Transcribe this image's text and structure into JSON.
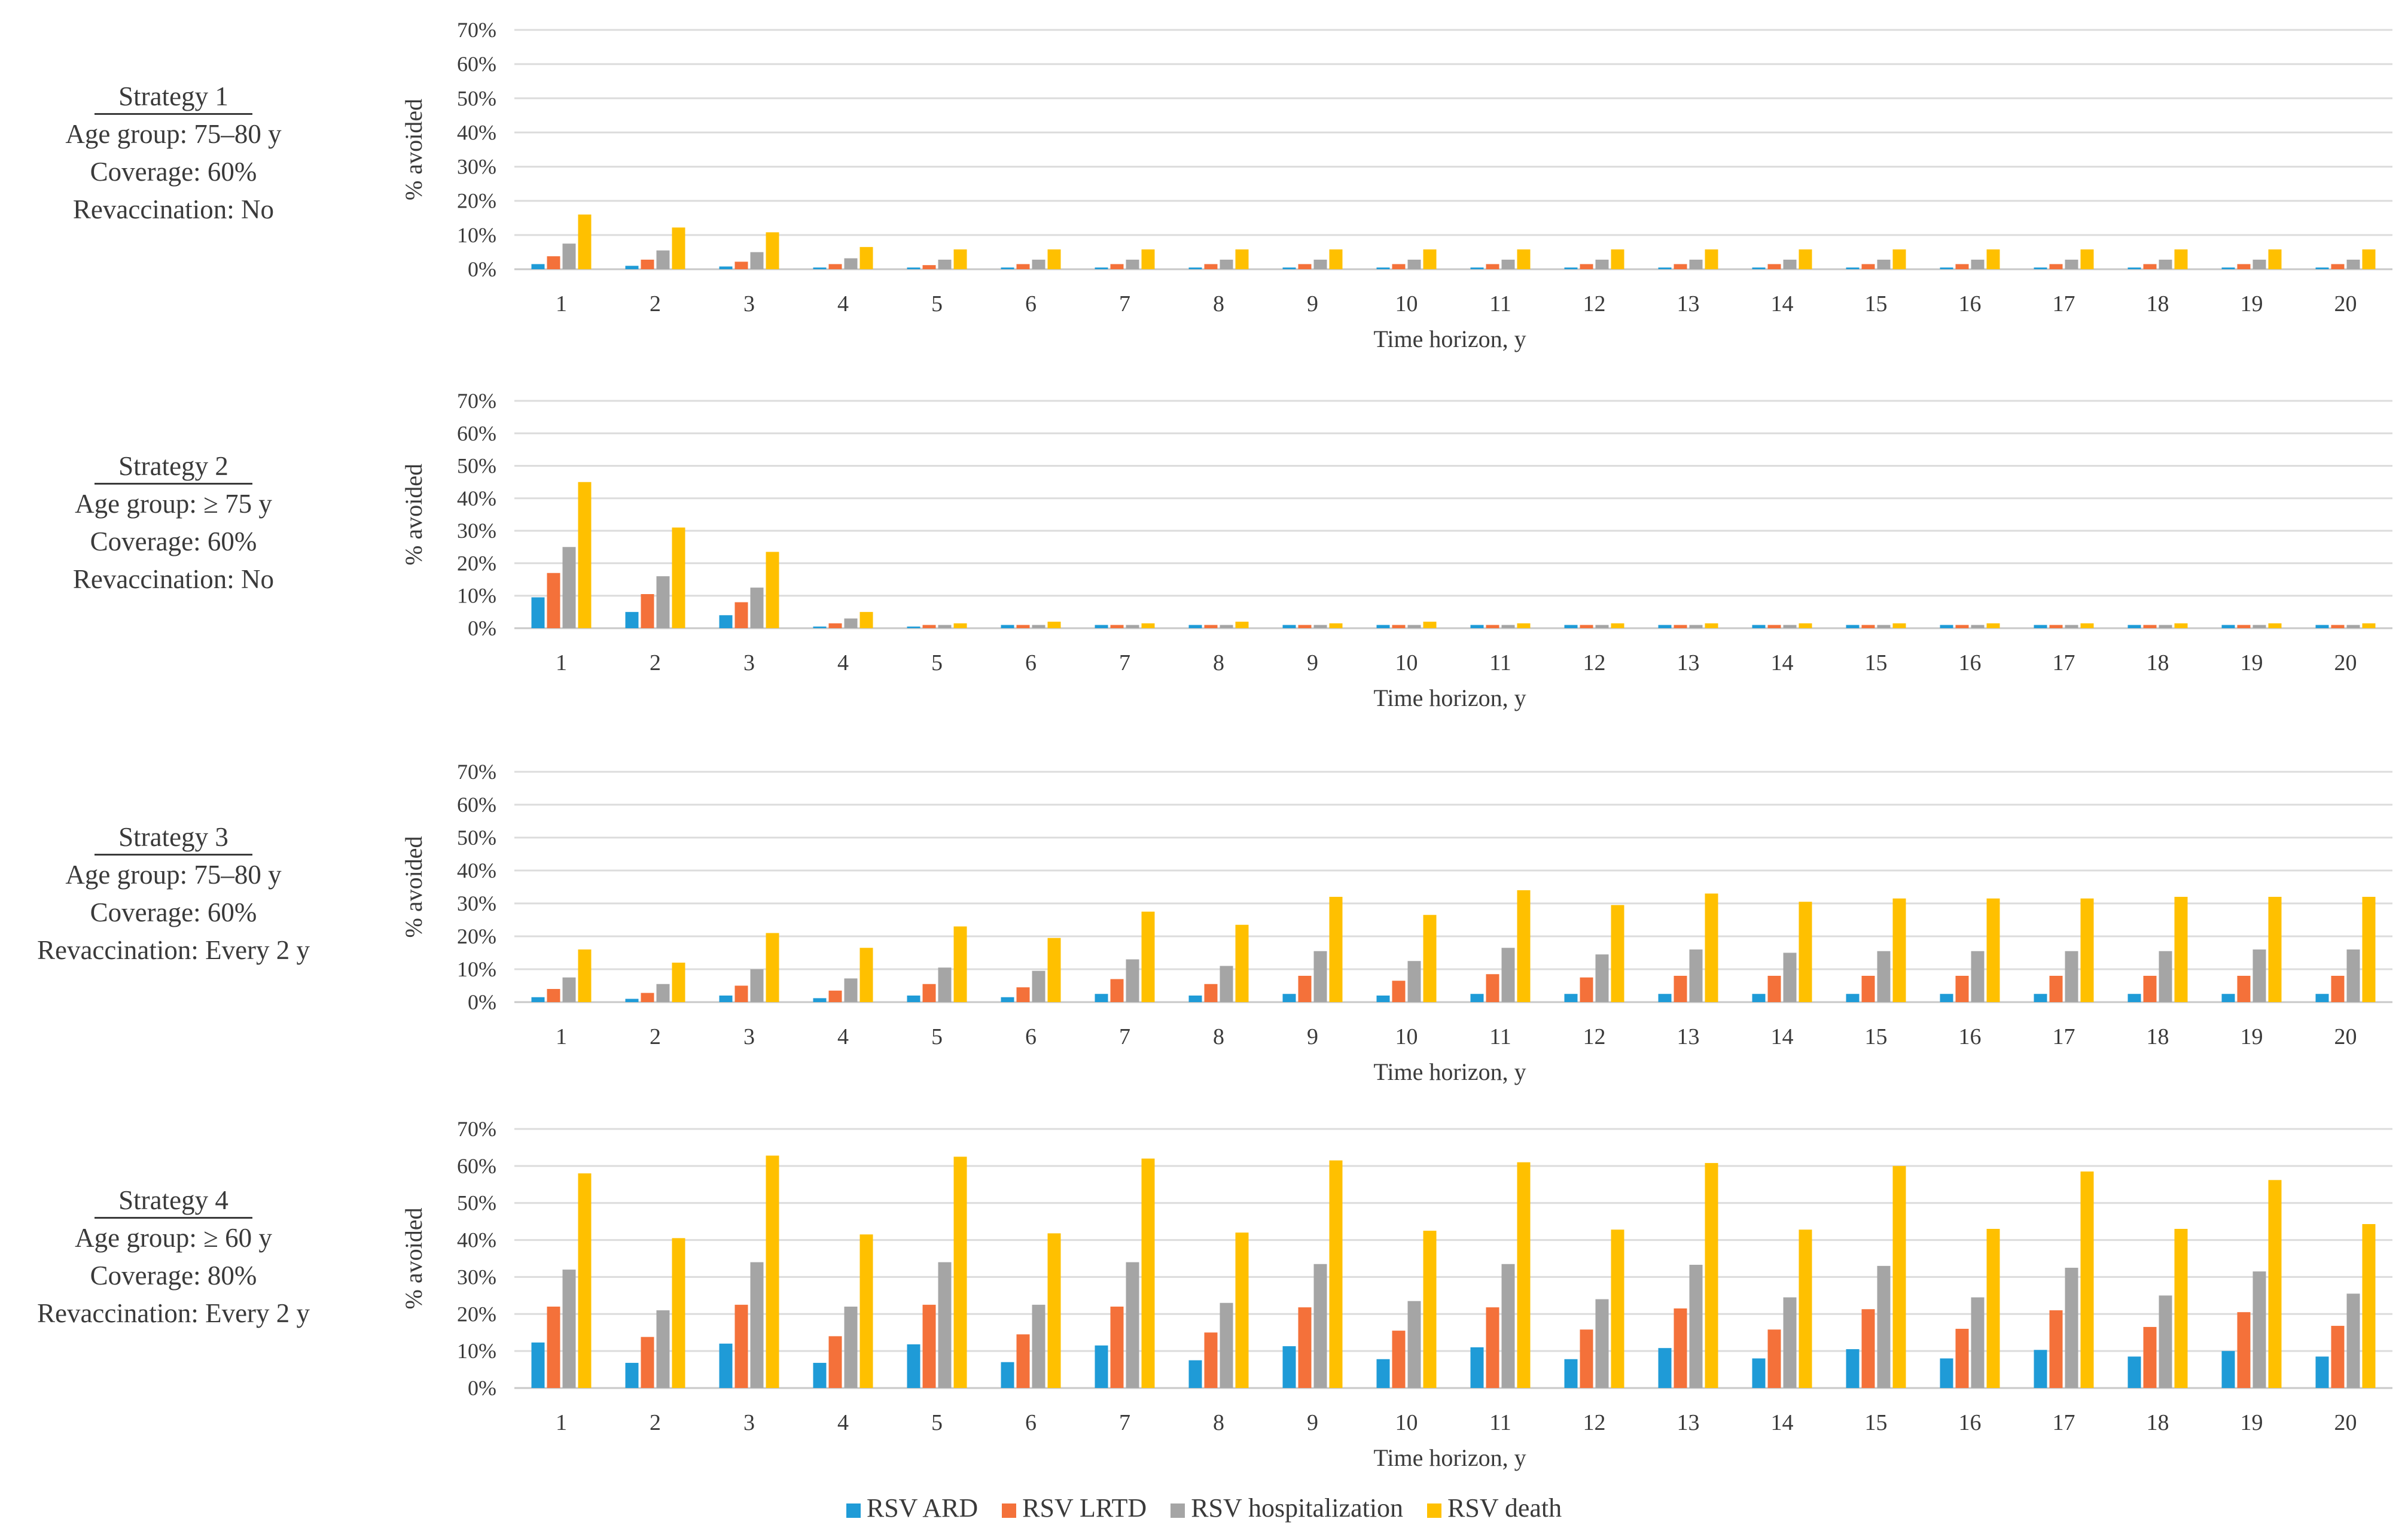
{
  "legend": [
    {
      "name": "RSV ARD",
      "color": "#1f9bd7"
    },
    {
      "name": "RSV LRTD",
      "color": "#f4713a"
    },
    {
      "name": "RSV hospitalization",
      "color": "#a5a5a5"
    },
    {
      "name": "RSV death",
      "color": "#ffc000"
    }
  ],
  "strategies": [
    {
      "title": "Strategy 1",
      "age_group": "Age group: 75–80 y",
      "coverage": "Coverage: 60%",
      "revaccination": "Revaccination: No"
    },
    {
      "title": "Strategy 2",
      "age_group": "Age group: ≥ 75 y",
      "coverage": "Coverage: 60%",
      "revaccination": "Revaccination: No"
    },
    {
      "title": "Strategy 3",
      "age_group": "Age group: 75–80 y",
      "coverage": "Coverage: 60%",
      "revaccination": "Revaccination: Every 2 y"
    },
    {
      "title": "Strategy 4",
      "age_group": "Age group: ≥ 60 y",
      "coverage": "Coverage: 80%",
      "revaccination": "Revaccination: Every 2 y"
    }
  ],
  "chart_data": [
    {
      "type": "bar",
      "xlabel": "Time horizon, y",
      "ylabel": "% avoided",
      "ylim": [
        0,
        70
      ],
      "yticks": [
        "0%",
        "10%",
        "20%",
        "30%",
        "40%",
        "50%",
        "60%",
        "70%"
      ],
      "grid": true,
      "legend_position": "bottom",
      "categories": [
        "1",
        "2",
        "3",
        "4",
        "5",
        "6",
        "7",
        "8",
        "9",
        "10",
        "11",
        "12",
        "13",
        "14",
        "15",
        "16",
        "17",
        "18",
        "19",
        "20"
      ],
      "series": [
        {
          "name": "RSV ARD",
          "values": [
            1.5,
            1.0,
            0.8,
            0.5,
            0.5,
            0.5,
            0.5,
            0.5,
            0.5,
            0.5,
            0.5,
            0.5,
            0.5,
            0.5,
            0.5,
            0.5,
            0.5,
            0.5,
            0.5,
            0.5
          ]
        },
        {
          "name": "RSV LRTD",
          "values": [
            3.8,
            2.8,
            2.2,
            1.5,
            1.2,
            1.5,
            1.5,
            1.5,
            1.5,
            1.5,
            1.5,
            1.5,
            1.5,
            1.5,
            1.5,
            1.5,
            1.5,
            1.5,
            1.5,
            1.5
          ]
        },
        {
          "name": "RSV hospitalization",
          "values": [
            7.5,
            5.5,
            5.0,
            3.2,
            2.8,
            2.8,
            2.8,
            2.8,
            2.8,
            2.8,
            2.8,
            2.8,
            2.8,
            2.8,
            2.8,
            2.8,
            2.8,
            2.8,
            2.8,
            2.8
          ]
        },
        {
          "name": "RSV death",
          "values": [
            16.0,
            12.2,
            10.8,
            6.5,
            5.8,
            5.8,
            5.8,
            5.8,
            5.8,
            5.8,
            5.8,
            5.8,
            5.8,
            5.8,
            5.8,
            5.8,
            5.8,
            5.8,
            5.8,
            5.8
          ]
        }
      ]
    },
    {
      "type": "bar",
      "xlabel": "Time horizon, y",
      "ylabel": "% avoided",
      "ylim": [
        0,
        70
      ],
      "yticks": [
        "0%",
        "10%",
        "20%",
        "30%",
        "40%",
        "50%",
        "60%",
        "70%"
      ],
      "grid": true,
      "legend_position": "bottom",
      "categories": [
        "1",
        "2",
        "3",
        "4",
        "5",
        "6",
        "7",
        "8",
        "9",
        "10",
        "11",
        "12",
        "13",
        "14",
        "15",
        "16",
        "17",
        "18",
        "19",
        "20"
      ],
      "series": [
        {
          "name": "RSV ARD",
          "values": [
            9.5,
            5.0,
            4.0,
            0.5,
            0.5,
            1.0,
            1.0,
            1.0,
            1.0,
            1.0,
            1.0,
            1.0,
            1.0,
            1.0,
            1.0,
            1.0,
            1.0,
            1.0,
            1.0,
            1.0
          ]
        },
        {
          "name": "RSV LRTD",
          "values": [
            17.0,
            10.5,
            8.0,
            1.5,
            1.0,
            1.0,
            1.0,
            1.0,
            1.0,
            1.0,
            1.0,
            1.0,
            1.0,
            1.0,
            1.0,
            1.0,
            1.0,
            1.0,
            1.0,
            1.0
          ]
        },
        {
          "name": "RSV hospitalization",
          "values": [
            25.0,
            16.0,
            12.5,
            3.0,
            1.0,
            1.0,
            1.0,
            1.0,
            1.0,
            1.0,
            1.0,
            1.0,
            1.0,
            1.0,
            1.0,
            1.0,
            1.0,
            1.0,
            1.0,
            1.0
          ]
        },
        {
          "name": "RSV death",
          "values": [
            45.0,
            31.0,
            23.5,
            5.0,
            1.5,
            2.0,
            1.5,
            2.0,
            1.5,
            2.0,
            1.5,
            1.5,
            1.5,
            1.5,
            1.5,
            1.5,
            1.5,
            1.5,
            1.5,
            1.5
          ]
        }
      ]
    },
    {
      "type": "bar",
      "xlabel": "Time horizon, y",
      "ylabel": "% avoided",
      "ylim": [
        0,
        70
      ],
      "yticks": [
        "0%",
        "10%",
        "20%",
        "30%",
        "40%",
        "50%",
        "60%",
        "70%"
      ],
      "grid": true,
      "legend_position": "bottom",
      "categories": [
        "1",
        "2",
        "3",
        "4",
        "5",
        "6",
        "7",
        "8",
        "9",
        "10",
        "11",
        "12",
        "13",
        "14",
        "15",
        "16",
        "17",
        "18",
        "19",
        "20"
      ],
      "series": [
        {
          "name": "RSV ARD",
          "values": [
            1.5,
            1.0,
            2.0,
            1.2,
            2.0,
            1.5,
            2.5,
            2.0,
            2.5,
            2.0,
            2.5,
            2.5,
            2.5,
            2.5,
            2.5,
            2.5,
            2.5,
            2.5,
            2.5,
            2.5
          ]
        },
        {
          "name": "RSV LRTD",
          "values": [
            4.0,
            2.8,
            5.0,
            3.5,
            5.5,
            4.5,
            7.0,
            5.5,
            8.0,
            6.5,
            8.5,
            7.5,
            8.0,
            8.0,
            8.0,
            8.0,
            8.0,
            8.0,
            8.0,
            8.0
          ]
        },
        {
          "name": "RSV hospitalization",
          "values": [
            7.5,
            5.5,
            10.0,
            7.2,
            10.5,
            9.5,
            13.0,
            11.0,
            15.5,
            12.5,
            16.5,
            14.5,
            16.0,
            15.0,
            15.5,
            15.5,
            15.5,
            15.5,
            16.0,
            16.0
          ]
        },
        {
          "name": "RSV death",
          "values": [
            16.0,
            12.0,
            21.0,
            16.5,
            23.0,
            19.5,
            27.5,
            23.5,
            32.0,
            26.5,
            34.0,
            29.5,
            33.0,
            30.5,
            31.5,
            31.5,
            31.5,
            32.0,
            32.0,
            32.0
          ]
        }
      ]
    },
    {
      "type": "bar",
      "xlabel": "Time horizon, y",
      "ylabel": "% avoided",
      "ylim": [
        0,
        70
      ],
      "yticks": [
        "0%",
        "10%",
        "20%",
        "30%",
        "40%",
        "50%",
        "60%",
        "70%"
      ],
      "grid": true,
      "legend_position": "bottom",
      "categories": [
        "1",
        "2",
        "3",
        "4",
        "5",
        "6",
        "7",
        "8",
        "9",
        "10",
        "11",
        "12",
        "13",
        "14",
        "15",
        "16",
        "17",
        "18",
        "19",
        "20"
      ],
      "series": [
        {
          "name": "RSV ARD",
          "values": [
            12.3,
            6.8,
            12.0,
            6.8,
            11.8,
            7.0,
            11.5,
            7.5,
            11.3,
            7.8,
            11.0,
            7.8,
            10.8,
            8.0,
            10.5,
            8.0,
            10.3,
            8.5,
            10.0,
            8.5
          ]
        },
        {
          "name": "RSV LRTD",
          "values": [
            22.0,
            13.8,
            22.5,
            14.0,
            22.5,
            14.5,
            22.0,
            15.0,
            21.8,
            15.5,
            21.8,
            15.8,
            21.5,
            15.8,
            21.3,
            16.0,
            21.0,
            16.5,
            20.5,
            16.8
          ]
        },
        {
          "name": "RSV hospitalization",
          "values": [
            32.0,
            21.0,
            34.0,
            22.0,
            34.0,
            22.5,
            34.0,
            23.0,
            33.5,
            23.5,
            33.5,
            24.0,
            33.3,
            24.5,
            33.0,
            24.5,
            32.5,
            25.0,
            31.5,
            25.5
          ]
        },
        {
          "name": "RSV death",
          "values": [
            58.0,
            40.5,
            62.8,
            41.5,
            62.5,
            41.8,
            62.0,
            42.0,
            61.5,
            42.5,
            61.0,
            42.8,
            60.8,
            42.8,
            60.0,
            43.0,
            58.5,
            43.0,
            56.2,
            44.3
          ]
        }
      ]
    }
  ]
}
